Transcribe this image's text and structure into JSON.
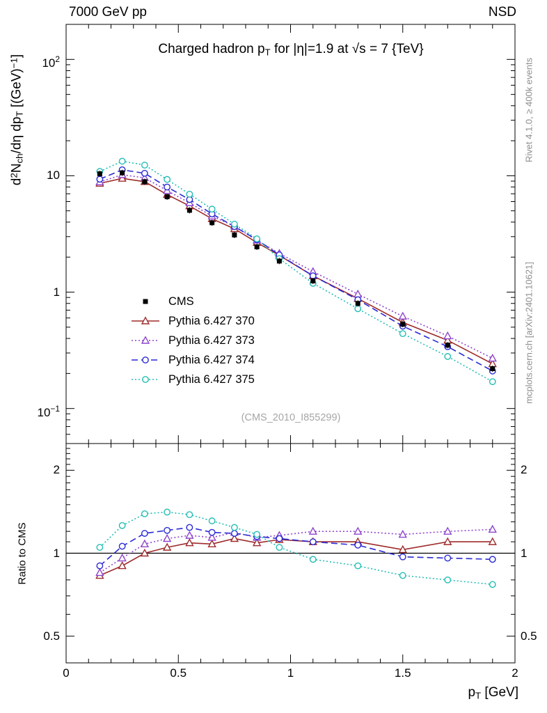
{
  "header": {
    "left": "7000 GeV pp",
    "right": "NSD"
  },
  "title": {
    "pre": "Charged hadron p",
    "sub": "T",
    "post": " for |η|=1.9 at √s = 7 {TeV}"
  },
  "side_notes": {
    "top_right": "Rivet 4.1.0, ≥ 400k events",
    "bottom_right": "mcplots.cern.ch [arXiv:2401.10621]"
  },
  "watermark": "(CMS_2010_I855299)",
  "axes": {
    "x_label": {
      "pre": "p",
      "sub": "T",
      "post": " [GeV]"
    },
    "y_label_main_segments": [
      {
        "t": "d",
        "s": "n"
      },
      {
        "t": "2",
        "s": "sup"
      },
      {
        "t": "N",
        "s": "n"
      },
      {
        "t": "ch",
        "s": "sub"
      },
      {
        "t": "/dη dp",
        "s": "n"
      },
      {
        "t": "T",
        "s": "sub"
      },
      {
        "t": " [(GeV)",
        "s": "n"
      },
      {
        "t": "−1",
        "s": "sup"
      },
      {
        "t": "]",
        "s": "n"
      }
    ],
    "y_label_ratio": "Ratio to CMS",
    "x_ticks": [
      {
        "value": 0,
        "label": "0"
      },
      {
        "value": 0.5,
        "label": "0.5"
      },
      {
        "value": 1,
        "label": "1"
      },
      {
        "value": 1.5,
        "label": "1.5"
      },
      {
        "value": 2,
        "label": "2"
      }
    ],
    "y_ticks_main": [
      {
        "value": 100,
        "base": "10",
        "exp": "2"
      },
      {
        "value": 10,
        "base": "10",
        "exp": ""
      },
      {
        "value": 1,
        "base": "1",
        "exp": ""
      },
      {
        "value": 0.1,
        "base": "10",
        "exp": "−1"
      }
    ],
    "y_ticks_ratio": [
      {
        "value": 2,
        "label": "2"
      },
      {
        "value": 1,
        "label": "1"
      },
      {
        "value": 0.5,
        "label": "0.5"
      }
    ]
  },
  "chart_data": {
    "type": "line",
    "title": "Charged hadron pT for |η|=1.9 at √s = 7 TeV",
    "xlabel": "pT [GeV]",
    "x_range": [
      0,
      2
    ],
    "x": [
      0.15,
      0.25,
      0.35,
      0.45,
      0.55,
      0.65,
      0.75,
      0.85,
      0.95,
      1.1,
      1.3,
      1.5,
      1.7,
      1.9
    ],
    "main_panel": {
      "ylabel": "d2Nch/dη dpT [(GeV)−1]",
      "y_scale": "log",
      "y_range": [
        0.05,
        200
      ],
      "grid": false
    },
    "ratio_panel": {
      "ylabel": "Ratio to CMS",
      "y_scale": "log",
      "y_range": [
        0.4,
        2.5
      ],
      "reference_value": 1,
      "grid": false
    },
    "legend_position": "middle-left-of-main-panel",
    "series": [
      {
        "name": "CMS",
        "role": "data",
        "color": "#000000",
        "marker": "filled-square",
        "line": "none",
        "values": [
          10.4,
          10.6,
          8.9,
          6.6,
          5.05,
          3.95,
          3.1,
          2.45,
          1.85,
          1.25,
          0.8,
          0.53,
          0.35,
          0.22
        ]
      },
      {
        "name": "Pythia 6.427 370",
        "role": "mc",
        "color": "#9e2b2b",
        "marker": "open-triangle",
        "line": "solid",
        "values": [
          8.6,
          9.5,
          8.9,
          6.9,
          5.5,
          4.27,
          3.5,
          2.67,
          2.07,
          1.38,
          0.88,
          0.55,
          0.385,
          0.242
        ],
        "ratio_to_cms": [
          0.83,
          0.9,
          1.0,
          1.05,
          1.09,
          1.08,
          1.13,
          1.09,
          1.12,
          1.1,
          1.1,
          1.03,
          1.1,
          1.1
        ]
      },
      {
        "name": "Pythia 6.427 373",
        "role": "mc",
        "color": "#8e44cc",
        "marker": "open-triangle",
        "line": "dotted",
        "values": [
          8.85,
          10.2,
          9.6,
          7.45,
          5.85,
          4.5,
          3.69,
          2.79,
          2.15,
          1.5,
          0.96,
          0.62,
          0.42,
          0.27
        ],
        "ratio_to_cms": [
          0.85,
          0.96,
          1.08,
          1.13,
          1.16,
          1.14,
          1.19,
          1.14,
          1.16,
          1.2,
          1.2,
          1.17,
          1.2,
          1.22
        ]
      },
      {
        "name": "Pythia 6.427 374",
        "role": "mc",
        "color": "#2929d4",
        "marker": "open-circle",
        "line": "dashed",
        "values": [
          9.35,
          11.25,
          10.5,
          8.0,
          6.25,
          4.7,
          3.66,
          2.82,
          2.09,
          1.38,
          0.86,
          0.51,
          0.34,
          0.21
        ],
        "ratio_to_cms": [
          0.9,
          1.06,
          1.18,
          1.21,
          1.24,
          1.19,
          1.18,
          1.15,
          1.13,
          1.1,
          1.07,
          0.97,
          0.96,
          0.95
        ]
      },
      {
        "name": "Pythia 6.427 375",
        "role": "mc",
        "color": "#23bdb4",
        "marker": "open-circle",
        "line": "dotted",
        "values": [
          10.9,
          13.35,
          12.35,
          9.3,
          6.95,
          5.17,
          3.84,
          2.87,
          1.94,
          1.19,
          0.72,
          0.44,
          0.28,
          0.17
        ],
        "ratio_to_cms": [
          1.05,
          1.26,
          1.39,
          1.41,
          1.38,
          1.31,
          1.24,
          1.17,
          1.05,
          0.95,
          0.9,
          0.83,
          0.8,
          0.77
        ]
      }
    ]
  }
}
